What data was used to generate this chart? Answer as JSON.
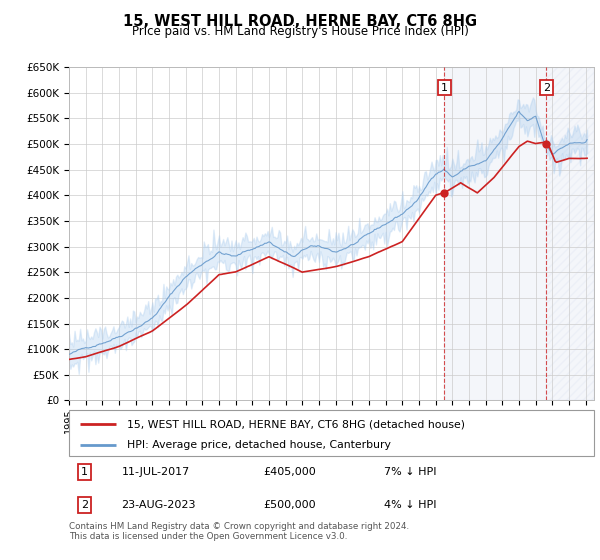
{
  "title": "15, WEST HILL ROAD, HERNE BAY, CT6 8HG",
  "subtitle": "Price paid vs. HM Land Registry's House Price Index (HPI)",
  "ytick_values": [
    0,
    50000,
    100000,
    150000,
    200000,
    250000,
    300000,
    350000,
    400000,
    450000,
    500000,
    550000,
    600000,
    650000
  ],
  "x_start_year": 1995,
  "x_end_year": 2026,
  "purchase1": {
    "date_str": "11-JUL-2017",
    "year": 2017.53,
    "price": 405000,
    "label": "7% ↓ HPI"
  },
  "purchase2": {
    "date_str": "23-AUG-2023",
    "year": 2023.64,
    "price": 500000,
    "label": "4% ↓ HPI"
  },
  "legend_label_red": "15, WEST HILL ROAD, HERNE BAY, CT6 8HG (detached house)",
  "legend_label_blue": "HPI: Average price, detached house, Canterbury",
  "footer": "Contains HM Land Registry data © Crown copyright and database right 2024.\nThis data is licensed under the Open Government Licence v3.0.",
  "red_color": "#cc2222",
  "blue_color": "#6699cc",
  "hpi_fill_color": "#aaccee",
  "annotation_box_color": "#cc2222",
  "dashed_line_color": "#cc2222",
  "shaded_color": "#ddeeff",
  "hatch_color": "#ccddee"
}
